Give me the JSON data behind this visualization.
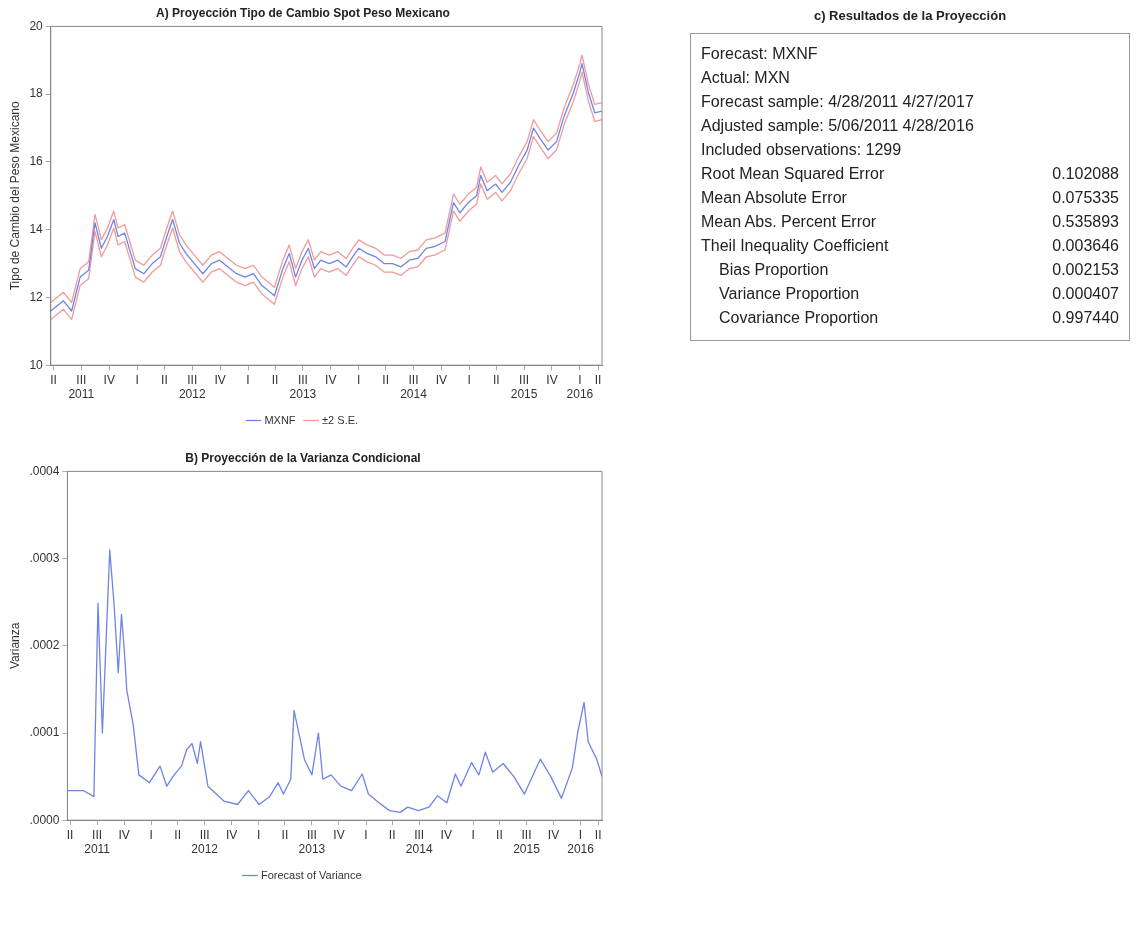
{
  "chart_data": [
    {
      "type": "line",
      "title": "A) Proyección Tipo de Cambio Spot Peso Mexicano",
      "ylabel": "Tipo de Cambio del Peso Mexicano",
      "legend": "bottom",
      "x": [
        "2011-05-06",
        "2011-06-17",
        "2011-07-14",
        "2011-08-11",
        "2011-09-08",
        "2011-09-29",
        "2011-10-20",
        "2011-11-09",
        "2011-11-30",
        "2011-12-14",
        "2012-01-05",
        "2012-02-09",
        "2012-03-08",
        "2012-04-05",
        "2012-05-02",
        "2012-05-23",
        "2012-06-11",
        "2012-07-04",
        "2012-07-25",
        "2012-08-22",
        "2012-09-19",
        "2012-10-17",
        "2012-11-13",
        "2012-12-11",
        "2013-01-08",
        "2013-02-05",
        "2013-03-05",
        "2013-04-02",
        "2013-05-13",
        "2013-06-10",
        "2013-07-01",
        "2013-07-22",
        "2013-08-12",
        "2013-09-02",
        "2013-09-22",
        "2013-10-13",
        "2013-11-10",
        "2013-12-08",
        "2014-01-05",
        "2014-01-26",
        "2014-02-15",
        "2014-03-15",
        "2014-04-12",
        "2014-05-10",
        "2014-06-07",
        "2014-07-04",
        "2014-08-01",
        "2014-08-29",
        "2014-09-26",
        "2014-10-23",
        "2014-11-27",
        "2014-12-25",
        "2015-01-15",
        "2015-02-12",
        "2015-03-11",
        "2015-03-25",
        "2015-04-15",
        "2015-05-13",
        "2015-06-03",
        "2015-07-01",
        "2015-07-28",
        "2015-08-25",
        "2015-09-15",
        "2015-10-06",
        "2015-11-02",
        "2015-11-30",
        "2015-12-25",
        "2016-01-25",
        "2016-02-15",
        "2016-02-22",
        "2016-03-14",
        "2016-04-04",
        "2016-04-28"
      ],
      "series": [
        {
          "name": "MXNF",
          "color": "#6f84e6",
          "values": [
            11.6,
            11.9,
            11.6,
            12.6,
            12.8,
            14.2,
            13.45,
            13.8,
            14.3,
            13.8,
            13.9,
            12.85,
            12.7,
            13.0,
            13.2,
            13.8,
            14.3,
            13.6,
            13.3,
            13.0,
            12.7,
            13.0,
            13.1,
            12.9,
            12.7,
            12.6,
            12.7,
            12.35,
            12.05,
            12.85,
            13.3,
            12.6,
            13.1,
            13.45,
            12.85,
            13.1,
            13.0,
            13.1,
            12.9,
            13.2,
            13.45,
            13.3,
            13.2,
            13.0,
            13.0,
            12.9,
            13.1,
            13.15,
            13.45,
            13.5,
            13.65,
            14.8,
            14.5,
            14.8,
            15.0,
            15.6,
            15.15,
            15.35,
            15.1,
            15.4,
            15.9,
            16.35,
            17.0,
            16.7,
            16.35,
            16.6,
            17.35,
            18.05,
            18.65,
            18.9,
            18.05,
            17.45,
            17.5
          ]
        },
        {
          "name": "±2 S.E.",
          "color": "#f29a9a",
          "values": [
            11.85,
            12.15,
            11.85,
            12.85,
            13.05,
            14.45,
            13.7,
            14.05,
            14.55,
            14.05,
            14.15,
            13.1,
            12.95,
            13.25,
            13.45,
            14.05,
            14.55,
            13.85,
            13.55,
            13.25,
            12.95,
            13.25,
            13.35,
            13.15,
            12.95,
            12.85,
            12.95,
            12.6,
            12.3,
            13.1,
            13.55,
            12.85,
            13.35,
            13.7,
            13.1,
            13.35,
            13.25,
            13.35,
            13.15,
            13.45,
            13.7,
            13.55,
            13.45,
            13.25,
            13.25,
            13.15,
            13.35,
            13.4,
            13.7,
            13.75,
            13.9,
            15.05,
            14.75,
            15.05,
            15.25,
            15.85,
            15.4,
            15.6,
            15.35,
            15.65,
            16.15,
            16.6,
            17.25,
            16.95,
            16.6,
            16.85,
            17.6,
            18.3,
            18.9,
            19.15,
            18.3,
            17.7,
            17.75
          ]
        },
        {
          "color": "#f29a9a",
          "values": [
            11.35,
            11.65,
            11.35,
            12.35,
            12.55,
            13.95,
            13.2,
            13.55,
            14.05,
            13.55,
            13.65,
            12.6,
            12.45,
            12.75,
            12.95,
            13.55,
            14.05,
            13.35,
            13.05,
            12.75,
            12.45,
            12.75,
            12.85,
            12.65,
            12.45,
            12.35,
            12.45,
            12.1,
            11.8,
            12.6,
            13.05,
            12.35,
            12.85,
            13.2,
            12.6,
            12.85,
            12.75,
            12.85,
            12.65,
            12.95,
            13.2,
            13.05,
            12.95,
            12.75,
            12.75,
            12.65,
            12.85,
            12.9,
            13.2,
            13.25,
            13.4,
            14.55,
            14.25,
            14.55,
            14.75,
            15.35,
            14.9,
            15.1,
            14.85,
            15.15,
            15.65,
            16.1,
            16.75,
            16.45,
            16.1,
            16.35,
            17.1,
            17.8,
            18.4,
            18.65,
            17.8,
            17.2,
            17.25
          ]
        }
      ],
      "xlim": [
        "2011-05-06",
        "2016-04-28"
      ],
      "xticks": [
        {
          "value": "2011-05-15",
          "label": "II"
        },
        {
          "value": "2011-08-15",
          "label": "III\n2011"
        },
        {
          "value": "2011-11-15",
          "label": "IV"
        },
        {
          "value": "2012-02-15",
          "label": "I"
        },
        {
          "value": "2012-05-15",
          "label": "II"
        },
        {
          "value": "2012-08-15",
          "label": "III\n2012"
        },
        {
          "value": "2012-11-15",
          "label": "IV"
        },
        {
          "value": "2013-02-15",
          "label": "I"
        },
        {
          "value": "2013-05-15",
          "label": "II"
        },
        {
          "value": "2013-08-15",
          "label": "III\n2013"
        },
        {
          "value": "2013-11-15",
          "label": "IV"
        },
        {
          "value": "2014-02-15",
          "label": "I"
        },
        {
          "value": "2014-05-15",
          "label": "II"
        },
        {
          "value": "2014-08-15",
          "label": "III\n2014"
        },
        {
          "value": "2014-11-15",
          "label": "IV"
        },
        {
          "value": "2015-02-15",
          "label": "I"
        },
        {
          "value": "2015-05-15",
          "label": "II"
        },
        {
          "value": "2015-08-15",
          "label": "III\n2015"
        },
        {
          "value": "2015-11-15",
          "label": "IV"
        },
        {
          "value": "2016-02-15",
          "label": "I\n2016"
        },
        {
          "value": "2016-04-15",
          "label": "II"
        }
      ],
      "ylim": [
        10,
        20
      ],
      "yticks": [
        10,
        12,
        14,
        16,
        18,
        20
      ]
    },
    {
      "type": "line",
      "title": "B) Proyección de la Varianza Condicional",
      "ylabel": "Varianza",
      "legend": "bottom",
      "x": [
        "2011-05-06",
        "2011-06-29",
        "2011-08-04",
        "2011-08-18",
        "2011-09-02",
        "2011-09-27",
        "2011-10-12",
        "2011-10-26",
        "2011-11-06",
        "2011-11-17",
        "2011-11-24",
        "2011-12-16",
        "2012-01-04",
        "2012-02-09",
        "2012-03-16",
        "2012-04-08",
        "2012-05-03",
        "2012-05-28",
        "2012-06-15",
        "2012-07-03",
        "2012-07-21",
        "2012-08-01",
        "2012-08-26",
        "2012-10-19",
        "2012-12-05",
        "2013-01-11",
        "2013-02-16",
        "2013-03-24",
        "2013-04-22",
        "2013-05-10",
        "2013-06-04",
        "2013-06-15",
        "2013-07-21",
        "2013-08-15",
        "2013-09-06",
        "2013-09-21",
        "2013-10-19",
        "2013-11-21",
        "2013-12-28",
        "2014-02-02",
        "2014-02-23",
        "2014-03-31",
        "2014-05-06",
        "2014-06-11",
        "2014-07-07",
        "2014-08-12",
        "2014-09-17",
        "2014-10-16",
        "2014-11-17",
        "2014-12-16",
        "2015-01-04",
        "2015-02-09",
        "2015-03-06",
        "2015-03-28",
        "2015-04-22",
        "2015-05-28",
        "2015-07-03",
        "2015-08-08",
        "2015-10-01",
        "2015-11-06",
        "2015-12-12",
        "2016-01-18",
        "2016-02-05",
        "2016-02-27",
        "2016-03-12",
        "2016-04-10",
        "2016-04-28"
      ],
      "series": [
        {
          "name": "Forecast of Variance",
          "color": "#6f84e6",
          "values": [
            3.4e-05,
            3.4e-05,
            2.7e-05,
            0.000249,
            0.0001,
            0.00031,
            0.000246,
            0.000169,
            0.000236,
            0.000188,
            0.000149,
            0.000109,
            5.2e-05,
            4.3e-05,
            6.2e-05,
            3.9e-05,
            5.2e-05,
            6.2e-05,
            8.1e-05,
            8.8e-05,
            6.5e-05,
            9e-05,
            3.9e-05,
            2.2e-05,
            1.8e-05,
            3.4e-05,
            1.8e-05,
            2.7e-05,
            4.3e-05,
            3e-05,
            4.7e-05,
            0.000126,
            6.9e-05,
            5.2e-05,
            0.0001,
            4.7e-05,
            5.2e-05,
            3.9e-05,
            3.4e-05,
            5.3e-05,
            3e-05,
            2e-05,
            1.1e-05,
            9e-06,
            1.5e-05,
            1.1e-05,
            1.5e-05,
            2.8e-05,
            2e-05,
            5.3e-05,
            3.9e-05,
            6.6e-05,
            5.2e-05,
            7.8e-05,
            5.5e-05,
            6.5e-05,
            5e-05,
            3e-05,
            7e-05,
            5e-05,
            2.5e-05,
            6e-05,
            0.0001,
            0.000135,
            9e-05,
            7e-05,
            5e-05
          ]
        }
      ],
      "xlim": [
        "2011-05-06",
        "2016-04-28"
      ],
      "xticks": [
        {
          "value": "2011-05-15",
          "label": "II"
        },
        {
          "value": "2011-08-15",
          "label": "III\n2011"
        },
        {
          "value": "2011-11-15",
          "label": "IV"
        },
        {
          "value": "2012-02-15",
          "label": "I"
        },
        {
          "value": "2012-05-15",
          "label": "II"
        },
        {
          "value": "2012-08-15",
          "label": "III\n2012"
        },
        {
          "value": "2012-11-15",
          "label": "IV"
        },
        {
          "value": "2013-02-15",
          "label": "I"
        },
        {
          "value": "2013-05-15",
          "label": "II"
        },
        {
          "value": "2013-08-15",
          "label": "III\n2013"
        },
        {
          "value": "2013-11-15",
          "label": "IV"
        },
        {
          "value": "2014-02-15",
          "label": "I"
        },
        {
          "value": "2014-05-15",
          "label": "II"
        },
        {
          "value": "2014-08-15",
          "label": "III\n2014"
        },
        {
          "value": "2014-11-15",
          "label": "IV"
        },
        {
          "value": "2015-02-15",
          "label": "I"
        },
        {
          "value": "2015-05-15",
          "label": "II"
        },
        {
          "value": "2015-08-15",
          "label": "III\n2015"
        },
        {
          "value": "2015-11-15",
          "label": "IV"
        },
        {
          "value": "2016-02-15",
          "label": "I\n2016"
        },
        {
          "value": "2016-04-15",
          "label": "II"
        }
      ],
      "ylim": [
        0,
        0.0004
      ],
      "yticks": [
        {
          "value": 0,
          "label": ".0000"
        },
        {
          "value": 0.0001,
          "label": ".0001"
        },
        {
          "value": 0.0002,
          "label": ".0002"
        },
        {
          "value": 0.0003,
          "label": ".0003"
        },
        {
          "value": 0.0004,
          "label": ".0004"
        }
      ]
    },
    {
      "type": "other",
      "title": "c) Resultados de la Proyección",
      "annotations": [
        "Forecast: MXNF",
        "Actual: MXN",
        "Forecast sample: 4/28/2011 4/27/2017",
        "Adjusted sample: 5/06/2011 4/28/2016",
        "Included observations: 1299",
        "Root Mean Squared Error",
        "0.102088",
        "Mean Absolute Error",
        "0.075335",
        "Mean Abs. Percent Error",
        "0.535893",
        "Theil Inequality Coefficient",
        "0.003646",
        "Bias Proportion",
        "0.002153",
        "Variance Proportion",
        "0.000407",
        "Covariance Proportion",
        "0.997440"
      ]
    }
  ]
}
